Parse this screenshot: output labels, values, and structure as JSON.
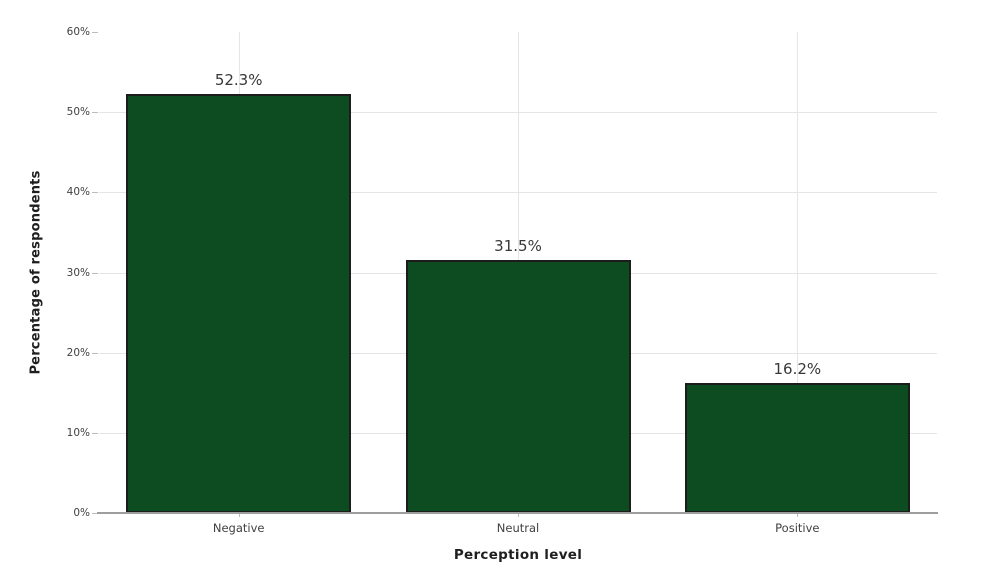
{
  "chart_data": {
    "type": "bar",
    "title": "",
    "categories": [
      "Negative",
      "Neutral",
      "Positive"
    ],
    "values": [
      52.3,
      31.5,
      16.2
    ],
    "value_labels": [
      "52.3%",
      "31.5%",
      "16.2%"
    ],
    "xlabel": "Perception level",
    "ylabel": "Percentage of respondents",
    "ylim": [
      0,
      60
    ],
    "ytick_step": 10,
    "ytick_values": [
      0,
      10,
      20,
      30,
      40,
      50,
      60
    ],
    "ytick_labels": [
      "0%",
      "10%",
      "20%",
      "30%",
      "40%",
      "50%",
      "60%"
    ],
    "grid": true,
    "legend": "none",
    "colors": {
      "bar_fill": "#0d4b21",
      "bar_edge": "#1c1c1c",
      "grid": "#e5e5e5",
      "axis_line": "#9e9e9e",
      "tick_mark": "#bdbdbd",
      "tick_text": "#414141",
      "value_text": "#383838",
      "axis_title_text": "#1f1f1f",
      "background": "#ffffff"
    }
  }
}
